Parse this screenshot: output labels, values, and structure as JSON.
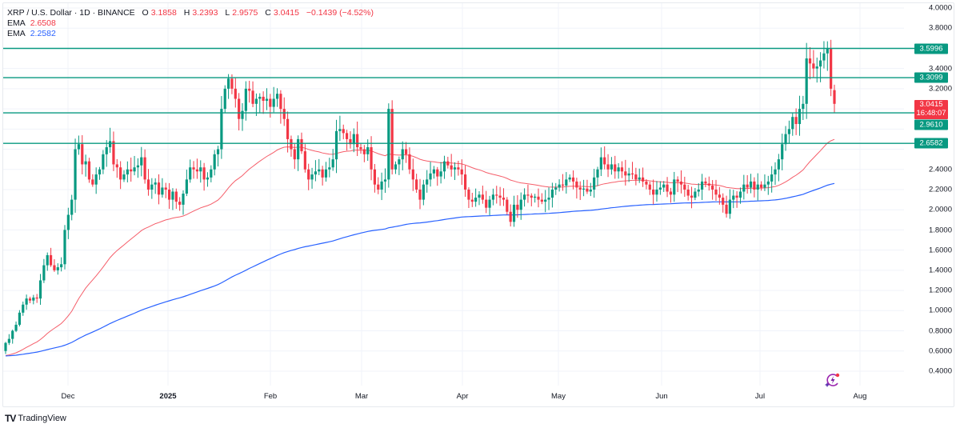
{
  "header": {
    "symbol": "XRP / U.S. Dollar · 1D · BINANCE",
    "open_label": "O",
    "open": "3.1858",
    "high_label": "H",
    "high": "3.2393",
    "low_label": "L",
    "low": "2.9575",
    "close_label": "C",
    "close": "3.0415",
    "change": "−0.1439 (−4.52%)",
    "ema1_label": "EMA",
    "ema1_value": "2.6508",
    "ema2_label": "EMA",
    "ema2_value": "2.2582"
  },
  "price_axis": {
    "labels": [
      "4.0000",
      "3.8000",
      "3.4000",
      "3.2000",
      "2.4000",
      "2.2000",
      "2.0000",
      "1.8000",
      "1.6000",
      "1.4000",
      "1.2000",
      "1.0000",
      "0.8000",
      "0.6000",
      "0.4000"
    ],
    "tags": {
      "level1": "3.5996",
      "level2": "3.3099",
      "current_price": "3.0415",
      "countdown": "16:48:07",
      "level3": "2.9610",
      "level4": "2.6582"
    }
  },
  "time_axis": {
    "labels": [
      "Dec",
      "2025",
      "Feb",
      "Mar",
      "Apr",
      "May",
      "Jun",
      "Jul",
      "Aug"
    ]
  },
  "branding": {
    "name": "TradingView"
  },
  "colors": {
    "up": "#089981",
    "down": "#f23645",
    "ema_fast": "#f23645",
    "ema_slow": "#2962ff",
    "hline": "#089981"
  },
  "chart_data": {
    "type": "candlestick",
    "title": "XRP / U.S. Dollar · 1D · BINANCE",
    "y_range": [
      0.4,
      4.0
    ],
    "x_ticks": [
      "Dec",
      "2025",
      "Feb",
      "Mar",
      "Apr",
      "May",
      "Jun",
      "Jul",
      "Aug"
    ],
    "horizontal_levels": [
      3.5996,
      3.3099,
      2.961,
      2.6582
    ],
    "start_date": "2024-11-12",
    "closes": [
      0.68,
      0.72,
      0.8,
      0.86,
      0.98,
      1.06,
      1.12,
      1.1,
      1.13,
      1.12,
      1.3,
      1.45,
      1.55,
      1.45,
      1.4,
      1.43,
      1.46,
      1.8,
      1.95,
      2.1,
      2.6,
      2.65,
      2.45,
      2.48,
      2.3,
      2.25,
      2.35,
      2.4,
      2.55,
      2.62,
      2.68,
      2.45,
      2.42,
      2.3,
      2.35,
      2.4,
      2.38,
      2.42,
      2.44,
      2.52,
      2.3,
      2.2,
      2.25,
      2.27,
      2.15,
      2.22,
      2.2,
      2.1,
      2.18,
      2.08,
      2.05,
      2.16,
      2.3,
      2.42,
      2.4,
      2.38,
      2.42,
      2.3,
      2.32,
      2.4,
      2.55,
      2.6,
      3.0,
      3.2,
      3.3,
      3.2,
      3.1,
      2.9,
      2.98,
      3.2,
      3.18,
      3.05,
      3.1,
      3.12,
      3.08,
      3.1,
      3.02,
      3.1,
      3.15,
      3.0,
      2.9,
      2.7,
      2.6,
      2.5,
      2.7,
      2.58,
      2.4,
      2.3,
      2.35,
      2.38,
      2.4,
      2.32,
      2.4,
      2.42,
      2.5,
      2.78,
      2.8,
      2.76,
      2.7,
      2.65,
      2.75,
      2.62,
      2.6,
      2.55,
      2.62,
      2.4,
      2.25,
      2.2,
      2.28,
      2.3,
      3.0,
      2.4,
      2.45,
      2.5,
      2.6,
      2.55,
      2.4,
      2.3,
      2.2,
      2.1,
      2.25,
      2.3,
      2.36,
      2.4,
      2.33,
      2.38,
      2.48,
      2.44,
      2.4,
      2.42,
      2.4,
      2.35,
      2.2,
      2.1,
      2.08,
      2.12,
      2.15,
      2.1,
      2.02,
      2.1,
      2.15,
      2.14,
      2.12,
      2.1,
      1.98,
      1.88,
      2.05,
      2.0,
      2.1,
      2.15,
      2.14,
      2.12,
      2.13,
      2.1,
      2.08,
      2.1,
      2.12,
      2.2,
      2.22,
      2.25,
      2.24,
      2.3,
      2.32,
      2.28,
      2.22,
      2.2,
      2.21,
      2.18,
      2.2,
      2.32,
      2.4,
      2.52,
      2.45,
      2.4,
      2.45,
      2.38,
      2.42,
      2.38,
      2.34,
      2.36,
      2.35,
      2.3,
      2.32,
      2.28,
      2.25,
      2.2,
      2.15,
      2.2,
      2.22,
      2.25,
      2.18,
      2.15,
      2.3,
      2.28,
      2.25,
      2.2,
      2.14,
      2.12,
      2.18,
      2.2,
      2.28,
      2.26,
      2.24,
      2.2,
      2.15,
      2.12,
      2.05,
      1.96,
      2.1,
      2.14,
      2.12,
      2.18,
      2.25,
      2.22,
      2.28,
      2.2,
      2.25,
      2.22,
      2.25,
      2.28,
      2.35,
      2.4,
      2.5,
      2.65,
      2.75,
      2.8,
      2.92,
      2.85,
      3.0,
      3.05,
      3.5,
      3.45,
      3.4,
      3.42,
      3.48,
      3.55,
      3.6,
      3.2,
      3.05
    ],
    "ema_fast_final": 2.6508,
    "ema_slow_final": 2.2582,
    "last_ohlc": {
      "open": 3.1858,
      "high": 3.2393,
      "low": 2.9575,
      "close": 3.0415
    }
  }
}
